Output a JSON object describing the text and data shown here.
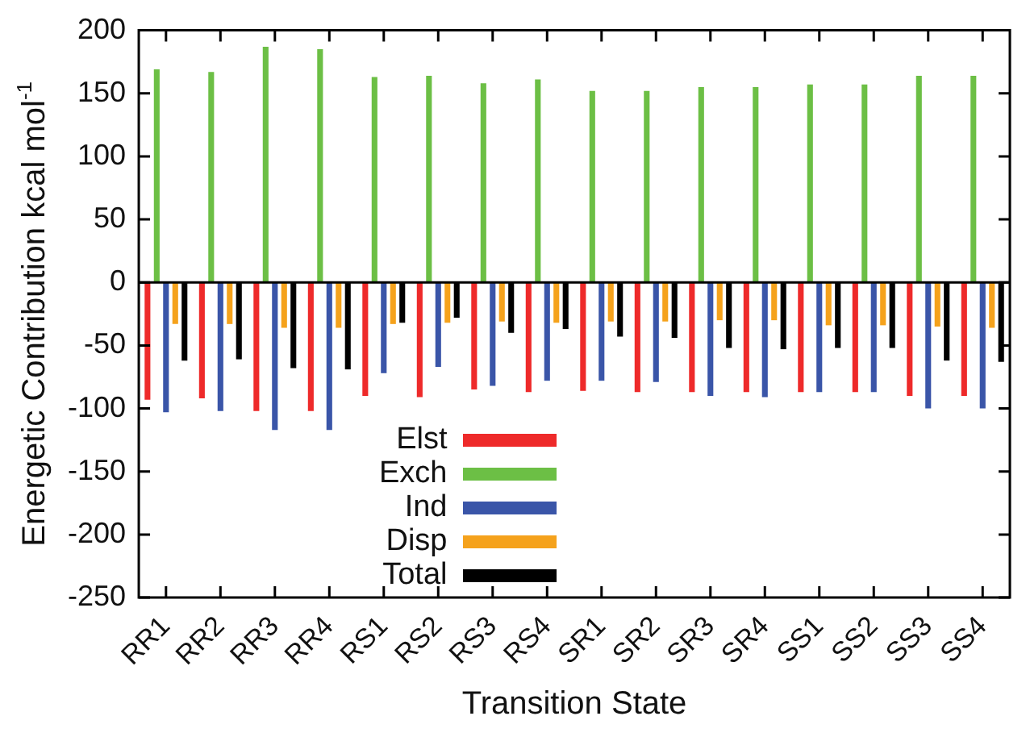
{
  "chart_data": {
    "type": "bar",
    "xlabel": "Transition State",
    "ylabel": "Energetic Contribution kcal mol$^{-1}$",
    "categories": [
      "RR1",
      "RR2",
      "RR3",
      "RR4",
      "RS1",
      "RS2",
      "RS3",
      "RS4",
      "SR1",
      "SR2",
      "SR3",
      "SR4",
      "SS1",
      "SS2",
      "SS3",
      "SS4"
    ],
    "series": [
      {
        "name": "Elst",
        "color": "#ee2a2a",
        "values": [
          -93,
          -92,
          -102,
          -102,
          -90,
          -91,
          -85,
          -87,
          -86,
          -87,
          -87,
          -87,
          -87,
          -87,
          -90,
          -90
        ]
      },
      {
        "name": "Exch",
        "color": "#6cbf45",
        "values": [
          169,
          167,
          187,
          185,
          163,
          164,
          158,
          161,
          152,
          152,
          155,
          155,
          157,
          157,
          164,
          164
        ]
      },
      {
        "name": "Ind",
        "color": "#3a55a8",
        "values": [
          -103,
          -102,
          -117,
          -117,
          -72,
          -67,
          -82,
          -78,
          -78,
          -79,
          -90,
          -91,
          -87,
          -87,
          -100,
          -100
        ]
      },
      {
        "name": "Disp",
        "color": "#f5a21c",
        "values": [
          -33,
          -33,
          -36,
          -36,
          -33,
          -32,
          -31,
          -32,
          -31,
          -31,
          -30,
          -30,
          -34,
          -34,
          -35,
          -36
        ]
      },
      {
        "name": "Total",
        "color": "#000000",
        "values": [
          -62,
          -61,
          -68,
          -69,
          -32,
          -28,
          -40,
          -37,
          -43,
          -44,
          -52,
          -53,
          -52,
          -52,
          -62,
          -63
        ]
      }
    ],
    "ylim": [
      -250,
      200
    ],
    "yticks": [
      -250,
      -200,
      -150,
      -100,
      -50,
      0,
      50,
      100,
      150,
      200
    ],
    "ref_lines": [
      {
        "axis": "y",
        "value": 0,
        "color": "#000000"
      }
    ],
    "legend": "bottom"
  }
}
